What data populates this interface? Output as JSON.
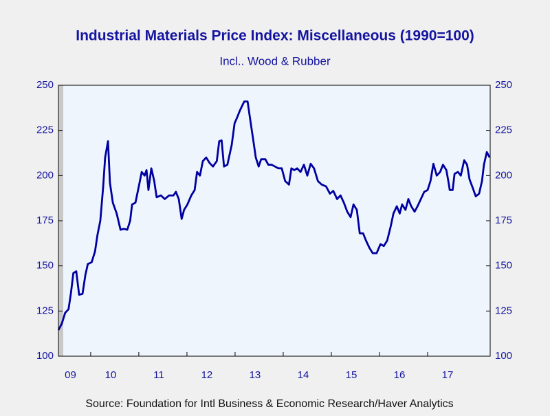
{
  "chart_data": {
    "type": "line",
    "title": "Industrial Materials Price Index: Miscellaneous (1990=100)",
    "subtitle": "Incl.. Wood  & Rubber",
    "source": "Source:  Foundation for Intl Business & Economic Research/Haver Analytics",
    "xlim": [
      2009.33,
      2018.3
    ],
    "xticks": [
      {
        "value": 2009,
        "label": "09"
      },
      {
        "value": 2010,
        "label": "10"
      },
      {
        "value": 2011,
        "label": "11"
      },
      {
        "value": 2012,
        "label": "12"
      },
      {
        "value": 2013,
        "label": "13"
      },
      {
        "value": 2014,
        "label": "14"
      },
      {
        "value": 2015,
        "label": "15"
      },
      {
        "value": 2016,
        "label": "16"
      },
      {
        "value": 2017,
        "label": "17"
      }
    ],
    "ylim": [
      100,
      250
    ],
    "yticks": [
      100,
      125,
      150,
      175,
      200,
      225,
      250
    ],
    "y2lim": [
      100,
      250
    ],
    "y2ticks": [
      100,
      125,
      150,
      175,
      200,
      225,
      250
    ],
    "shaded": [
      2009.33,
      2009.43
    ],
    "series": [
      {
        "color": "#0000a0",
        "x": [
          2009.33,
          2009.4,
          2009.47,
          2009.54,
          2009.59,
          2009.64,
          2009.7,
          2009.76,
          2009.83,
          2009.89,
          2009.94,
          2010.02,
          2010.09,
          2010.14,
          2010.2,
          2010.26,
          2010.3,
          2010.36,
          2010.4,
          2010.46,
          2010.54,
          2010.62,
          2010.69,
          2010.76,
          2010.82,
          2010.86,
          2010.93,
          2011.0,
          2011.06,
          2011.12,
          2011.16,
          2011.2,
          2011.26,
          2011.32,
          2011.37,
          2011.46,
          2011.54,
          2011.63,
          2011.72,
          2011.77,
          2011.83,
          2011.89,
          2011.94,
          2012.01,
          2012.09,
          2012.16,
          2012.21,
          2012.27,
          2012.33,
          2012.4,
          2012.47,
          2012.54,
          2012.62,
          2012.67,
          2012.72,
          2012.77,
          2012.84,
          2012.93,
          2012.99,
          2013.04,
          2013.1,
          2013.19,
          2013.26,
          2013.32,
          2013.37,
          2013.43,
          2013.49,
          2013.54,
          2013.63,
          2013.69,
          2013.76,
          2013.83,
          2013.9,
          2013.97,
          2014.04,
          2014.12,
          2014.17,
          2014.23,
          2014.29,
          2014.36,
          2014.43,
          2014.5,
          2014.57,
          2014.64,
          2014.72,
          2014.8,
          2014.89,
          2014.97,
          2015.04,
          2015.12,
          2015.19,
          2015.26,
          2015.33,
          2015.4,
          2015.46,
          2015.53,
          2015.59,
          2015.66,
          2015.72,
          2015.79,
          2015.86,
          2015.94,
          2016.02,
          2016.09,
          2016.16,
          2016.23,
          2016.29,
          2016.36,
          2016.42,
          2016.47,
          2016.54,
          2016.6,
          2016.66,
          2016.73,
          2016.79,
          2016.86,
          2016.93,
          2017.0,
          2017.06,
          2017.12,
          2017.19,
          2017.26,
          2017.32,
          2017.39,
          2017.43,
          2017.46,
          2017.52,
          2017.56,
          2017.63,
          2017.69,
          2017.76,
          2017.82,
          2017.87,
          2017.94,
          2018.0,
          2018.07,
          2018.13,
          2018.17,
          2018.23,
          2018.29
        ],
        "values": [
          114.5,
          118,
          124,
          126,
          135,
          146,
          147,
          134,
          134.5,
          145,
          151,
          152,
          158,
          167,
          175,
          194,
          210,
          219,
          196,
          185,
          179,
          170,
          170.5,
          170,
          175,
          184,
          185,
          194,
          202,
          200,
          203,
          192,
          204,
          197,
          188,
          189,
          187,
          189,
          189,
          191,
          187,
          176,
          181,
          184,
          189,
          192,
          202,
          200,
          208,
          210,
          207,
          205,
          208,
          219,
          219.5,
          205,
          206,
          217,
          229,
          232,
          236,
          241,
          241,
          230,
          221,
          210,
          205,
          209,
          209,
          206,
          206,
          205,
          204,
          204,
          197,
          195,
          204,
          203,
          204,
          202,
          206,
          200,
          206.5,
          204,
          197,
          195,
          194,
          190,
          191.5,
          187,
          189,
          185,
          180,
          177,
          184,
          181,
          168,
          168,
          164,
          160,
          157,
          157,
          162,
          161,
          164,
          171.5,
          179,
          183,
          179,
          184,
          181,
          187,
          183,
          180,
          183,
          187,
          191,
          192,
          197,
          206.5,
          200,
          202,
          206,
          203,
          197,
          192,
          192,
          201,
          202,
          200,
          208.5,
          206,
          198,
          193,
          188.5,
          190,
          197,
          206,
          213,
          210
        ]
      }
    ]
  }
}
